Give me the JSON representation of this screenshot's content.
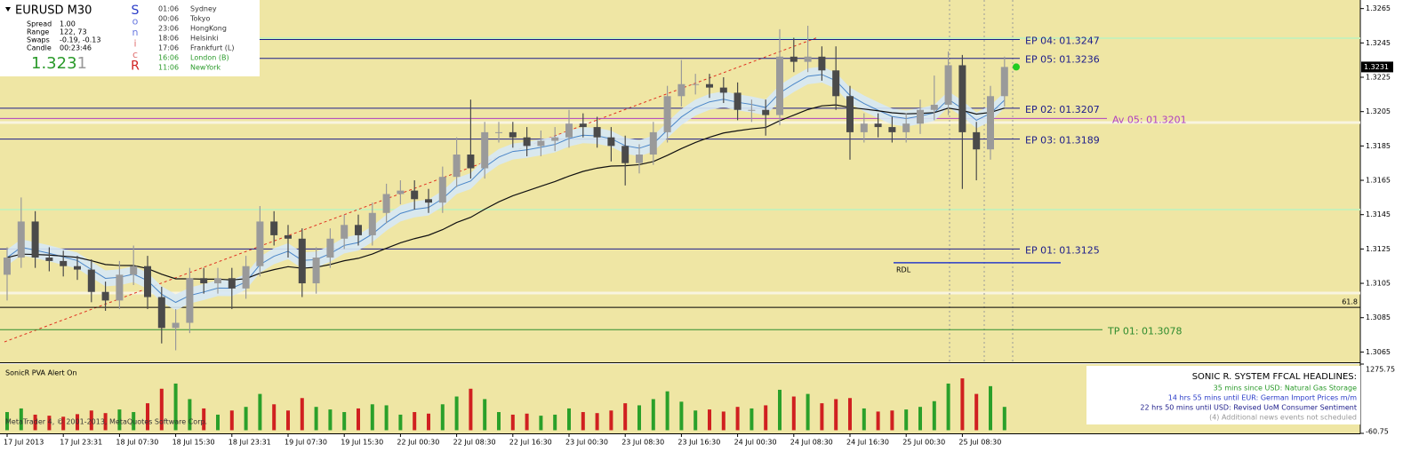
{
  "chart_data": {
    "type": "candlestick",
    "symbol": "EURUSD",
    "timeframe": "M30",
    "open": [
      1.311,
      1.312,
      1.3141,
      1.312,
      1.3118,
      1.3115,
      1.3113,
      1.31,
      1.3095,
      1.311,
      1.3115,
      1.3097,
      1.3079,
      1.3082,
      1.3108,
      1.3105,
      1.3108,
      1.3102,
      1.3115,
      1.3141,
      1.3133,
      1.3131,
      1.3105,
      1.312,
      1.3131,
      1.3139,
      1.3133,
      1.3146,
      1.3157,
      1.3159,
      1.3154,
      1.3152,
      1.3167,
      1.318,
      1.3172,
      1.3193,
      1.3193,
      1.319,
      1.3185,
      1.3188,
      1.319,
      1.3198,
      1.3196,
      1.319,
      1.3185,
      1.3175,
      1.318,
      1.3193,
      1.3214,
      1.3221,
      1.3221,
      1.3219,
      1.3216,
      1.3206,
      1.3206,
      1.3203,
      1.3237,
      1.3234,
      1.3237,
      1.3229,
      1.3214,
      1.3193,
      1.3198,
      1.3196,
      1.3193,
      1.3198,
      1.3206,
      1.3209,
      1.3232,
      1.3193,
      1.3183,
      1.3214
    ],
    "high": [
      1.3126,
      1.3155,
      1.3147,
      1.3126,
      1.3124,
      1.3121,
      1.3119,
      1.3106,
      1.3118,
      1.3127,
      1.3121,
      1.3103,
      1.309,
      1.3114,
      1.3114,
      1.3114,
      1.3114,
      1.3121,
      1.315,
      1.3147,
      1.3139,
      1.3137,
      1.3126,
      1.3137,
      1.3145,
      1.3145,
      1.3152,
      1.3163,
      1.3165,
      1.3165,
      1.316,
      1.3173,
      1.319,
      1.3212,
      1.3199,
      1.3199,
      1.3199,
      1.3196,
      1.3194,
      1.3196,
      1.3206,
      1.3204,
      1.3202,
      1.3196,
      1.3191,
      1.3186,
      1.3199,
      1.322,
      1.3235,
      1.3227,
      1.3227,
      1.3225,
      1.3222,
      1.3212,
      1.3212,
      1.3253,
      1.3248,
      1.3255,
      1.3243,
      1.3243,
      1.322,
      1.3204,
      1.3204,
      1.3202,
      1.3204,
      1.3212,
      1.3226,
      1.324,
      1.3238,
      1.3199,
      1.322,
      1.3237
    ],
    "low": [
      1.3095,
      1.3114,
      1.3114,
      1.3112,
      1.3109,
      1.3107,
      1.3094,
      1.3089,
      1.309,
      1.3104,
      1.309,
      1.307,
      1.3066,
      1.3076,
      1.3099,
      1.3099,
      1.309,
      1.3096,
      1.3109,
      1.3127,
      1.312,
      1.3097,
      1.3099,
      1.3114,
      1.3125,
      1.3127,
      1.3127,
      1.314,
      1.3151,
      1.3148,
      1.3146,
      1.3146,
      1.3161,
      1.3166,
      1.3166,
      1.3187,
      1.3184,
      1.3179,
      1.3179,
      1.3182,
      1.3184,
      1.319,
      1.3184,
      1.3176,
      1.3162,
      1.3169,
      1.3174,
      1.3187,
      1.3208,
      1.3215,
      1.3213,
      1.321,
      1.32,
      1.3199,
      1.3191,
      1.3197,
      1.3228,
      1.3228,
      1.3223,
      1.3206,
      1.3177,
      1.3187,
      1.319,
      1.3187,
      1.3187,
      1.3192,
      1.32,
      1.3203,
      1.316,
      1.3165,
      1.3177,
      1.3208
    ],
    "close": [
      1.312,
      1.3141,
      1.312,
      1.3118,
      1.3115,
      1.3113,
      1.31,
      1.3095,
      1.311,
      1.3115,
      1.3097,
      1.3079,
      1.3082,
      1.3108,
      1.3105,
      1.3108,
      1.3102,
      1.3115,
      1.3141,
      1.3133,
      1.3131,
      1.3105,
      1.312,
      1.3131,
      1.3139,
      1.3133,
      1.3146,
      1.3157,
      1.3159,
      1.3154,
      1.3152,
      1.3167,
      1.318,
      1.3172,
      1.3193,
      1.3193,
      1.319,
      1.3185,
      1.3188,
      1.319,
      1.3198,
      1.3196,
      1.319,
      1.3185,
      1.3175,
      1.318,
      1.3193,
      1.3214,
      1.3221,
      1.3221,
      1.3219,
      1.3216,
      1.3206,
      1.3206,
      1.3203,
      1.3237,
      1.3234,
      1.3237,
      1.3229,
      1.3214,
      1.3193,
      1.3198,
      1.3196,
      1.3193,
      1.3198,
      1.3206,
      1.3209,
      1.3232,
      1.3193,
      1.3183,
      1.3214,
      1.3231
    ],
    "up_color": "#9a9a9a",
    "down_color": "#4a4a4a",
    "ylim": [
      1.3059,
      1.327
    ],
    "yticks": [
      1.3265,
      1.3245,
      1.3225,
      1.3205,
      1.3185,
      1.3165,
      1.3145,
      1.3125,
      1.3105,
      1.3085,
      1.3065
    ],
    "last_price": {
      "value": 1.3231,
      "label": "1.3231"
    },
    "x_labels": [
      "17 Jul 2013",
      "17 Jul 23:31",
      "18 Jul 07:30",
      "18 Jul 15:30",
      "18 Jul 23:31",
      "19 Jul 07:30",
      "19 Jul 15:30",
      "22 Jul 00:30",
      "22 Jul 08:30",
      "22 Jul 16:30",
      "23 Jul 00:30",
      "23 Jul 08:30",
      "23 Jul 16:30",
      "24 Jul 00:30",
      "24 Jul 08:30",
      "24 Jul 16:30",
      "25 Jul 00:30",
      "25 Jul 08:30"
    ],
    "levels": [
      {
        "label": "EP 04:  01.3247",
        "value": 1.3247,
        "color": "#1c1c8a"
      },
      {
        "label": "EP 05:  01.3236",
        "value": 1.3236,
        "color": "#1c1c8a"
      },
      {
        "label": "EP 02:  01.3207",
        "value": 1.3207,
        "color": "#1c1c8a"
      },
      {
        "label": "EP 03:  01.3189",
        "value": 1.3189,
        "color": "#1c1c8a"
      },
      {
        "label": "EP 01:  01.3125",
        "value": 1.3125,
        "color": "#1c1c8a"
      },
      {
        "label": "Av 05:  01.3201",
        "value": 1.3201,
        "color": "#b040c0"
      },
      {
        "label": "TP 01:  01.3078",
        "value": 1.3078,
        "color": "#2e8b2e"
      },
      {
        "label": "61.8",
        "value": 1.3091,
        "color": "#000000"
      }
    ],
    "rdl": {
      "label": "RDL",
      "value": 1.3117,
      "color": "#2a3cc8"
    },
    "indicator": {
      "title": "SonicR PVA   Alert On",
      "ylim": [
        -60.75,
        1275.75
      ],
      "yticks": [
        1275.75,
        -60.75
      ],
      "values": [
        350,
        420,
        300,
        280,
        260,
        310,
        380,
        330,
        400,
        350,
        520,
        800,
        900,
        600,
        420,
        300,
        380,
        450,
        700,
        500,
        380,
        620,
        450,
        400,
        350,
        420,
        500,
        480,
        300,
        350,
        320,
        500,
        650,
        800,
        600,
        350,
        300,
        320,
        280,
        300,
        420,
        350,
        330,
        380,
        520,
        480,
        600,
        750,
        550,
        380,
        400,
        360,
        450,
        420,
        480,
        780,
        650,
        700,
        520,
        600,
        620,
        420,
        360,
        380,
        400,
        450,
        560,
        900,
        1000,
        700,
        850,
        450
      ],
      "up_color": "#2aa02a",
      "down_color": "#d02020",
      "copyright": "MetaTrader 4, © 2001-2013, MetaQuotes Software Corp."
    }
  },
  "info_panel": {
    "title": "EURUSD   M30",
    "rows": [
      [
        "Spread",
        "1.00"
      ],
      [
        "Range",
        "122, 73"
      ],
      [
        "Swaps",
        "-0.19, -0.13"
      ],
      [
        "Candle",
        "00:23:46"
      ]
    ],
    "price_main": "1.323",
    "price_last": "1",
    "sonic": [
      "S",
      "o",
      "n",
      "i",
      "c",
      "R"
    ],
    "sessions": [
      [
        "01:06",
        "Sydney"
      ],
      [
        "00:06",
        "Tokyo"
      ],
      [
        "23:06",
        "HongKong"
      ],
      [
        "18:06",
        "Helsinki"
      ],
      [
        "17:06",
        "Frankfurt  (L)"
      ],
      [
        "16:06",
        "London  (B)"
      ],
      [
        "11:06",
        "NewYork"
      ]
    ]
  },
  "headlines": {
    "title": "SONIC R. SYSTEM  FFCAL HEADLINES:",
    "items": [
      "35 mins since USD: Natural Gas Storage",
      "14 hrs 55 mins until EUR: German Import Prices m/m",
      "22 hrs 50 mins until USD: Revised UoM Consumer Sentiment",
      "(4)  Additional news events not scheduled"
    ]
  }
}
